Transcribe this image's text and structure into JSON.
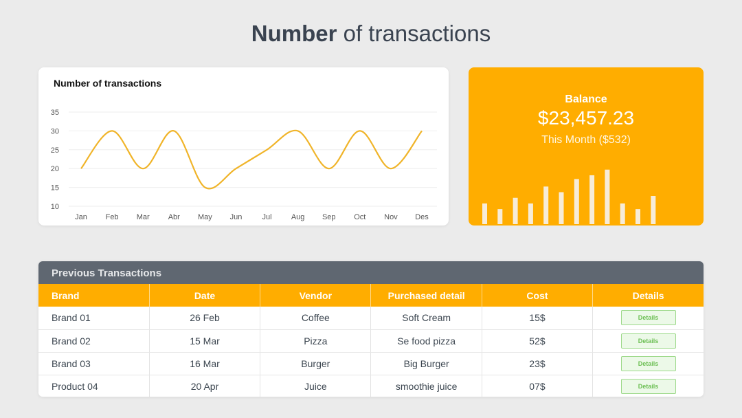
{
  "page": {
    "title_bold": "Number",
    "title_rest": "of transactions"
  },
  "chart_data": {
    "type": "line",
    "title": "Number of transactions",
    "categories": [
      "Jan",
      "Feb",
      "Mar",
      "Abr",
      "May",
      "Jun",
      "Jul",
      "Aug",
      "Sep",
      "Oct",
      "Nov",
      "Des"
    ],
    "series": [
      {
        "values": [
          20,
          30,
          20,
          30,
          15,
          20,
          25,
          30,
          20,
          30,
          20,
          30
        ]
      }
    ],
    "yticks": [
      10,
      15,
      20,
      25,
      30,
      35
    ],
    "ylim": [
      10,
      35
    ],
    "grid": true,
    "color": "#f0b429"
  },
  "balance": {
    "label": "Balance",
    "amount": "$23,457.23",
    "month": "This Month ($532)",
    "bar_values": [
      11,
      8,
      14,
      11,
      20,
      17,
      24,
      26,
      29,
      11,
      8,
      15
    ],
    "bar_max": 30,
    "bg_color": "#ffad00"
  },
  "table": {
    "title": "Previous Transactions",
    "columns": [
      "Brand",
      "Date",
      "Vendor",
      "Purchased detail",
      "Cost",
      "Details"
    ],
    "rows": [
      {
        "brand": "Brand 01",
        "date": "26 Feb",
        "vendor": "Coffee",
        "detail": "Soft Cream",
        "cost": "15$",
        "button": "Details"
      },
      {
        "brand": "Brand 02",
        "date": "15 Mar",
        "vendor": "Pizza",
        "detail": "Se food pizza",
        "cost": "52$",
        "button": "Details"
      },
      {
        "brand": "Brand 03",
        "date": "16 Mar",
        "vendor": "Burger",
        "detail": "Big Burger",
        "cost": "23$",
        "button": "Details"
      },
      {
        "brand": "Product 04",
        "date": "20 Apr",
        "vendor": "Juice",
        "detail": "smoothie juice",
        "cost": "07$",
        "button": "Details"
      }
    ]
  }
}
